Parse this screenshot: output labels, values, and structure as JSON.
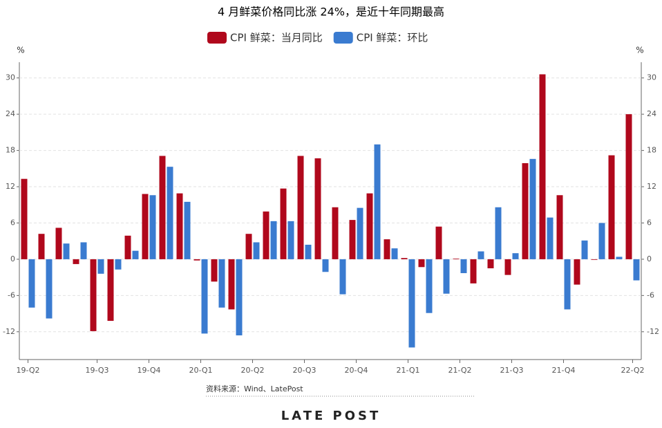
{
  "chart_data": {
    "type": "bar",
    "title": "4 月鲜菜价格同比涨 24%，是近十年同期最高",
    "y_label": "%",
    "y2_label": "%",
    "categories": [
      "19-Q2",
      null,
      null,
      null,
      "19-Q3",
      null,
      null,
      "19-Q4",
      null,
      null,
      "20-Q1",
      null,
      null,
      "20-Q2",
      null,
      null,
      "20-Q3",
      null,
      null,
      "20-Q4",
      null,
      null,
      "21-Q1",
      null,
      null,
      "21-Q2",
      null,
      null,
      "21-Q3",
      null,
      null,
      "21-Q4",
      null,
      null,
      null,
      "22-Q2"
    ],
    "series": [
      {
        "name": "CPI 鲜菜：当月同比",
        "color": "#b0081c",
        "values": [
          13.3,
          4.2,
          5.2,
          -0.8,
          -11.9,
          -10.2,
          3.9,
          10.8,
          17.1,
          10.9,
          -0.2,
          -3.7,
          -8.3,
          4.2,
          7.9,
          11.7,
          17.1,
          16.7,
          8.6,
          6.5,
          10.9,
          3.3,
          0.2,
          -1.3,
          5.4,
          0.1,
          -4.0,
          -1.5,
          -2.6,
          15.9,
          30.6,
          10.6,
          -4.2,
          -0.1,
          17.2,
          24.0
        ]
      },
      {
        "name": "CPI 鲜菜：环比",
        "color": "#3a7bd0",
        "values": [
          -8.0,
          -9.8,
          2.6,
          2.8,
          -2.4,
          -1.7,
          1.4,
          10.6,
          15.3,
          9.5,
          -12.3,
          -8.0,
          -12.6,
          2.8,
          6.3,
          6.3,
          2.4,
          -2.1,
          -5.8,
          8.5,
          19.0,
          1.8,
          -14.6,
          -8.9,
          -5.7,
          -2.3,
          1.3,
          8.6,
          1.0,
          16.6,
          6.9,
          -8.3,
          3.1,
          6.0,
          0.4,
          -3.5
        ]
      }
    ],
    "ylim": [
      -16.6,
      32.6
    ],
    "yticks": [
      -12,
      -6,
      0,
      6,
      12,
      18,
      24,
      30
    ],
    "grid": true,
    "source": "资料来源：Wind、LatePost",
    "logo": "LATE POST"
  }
}
